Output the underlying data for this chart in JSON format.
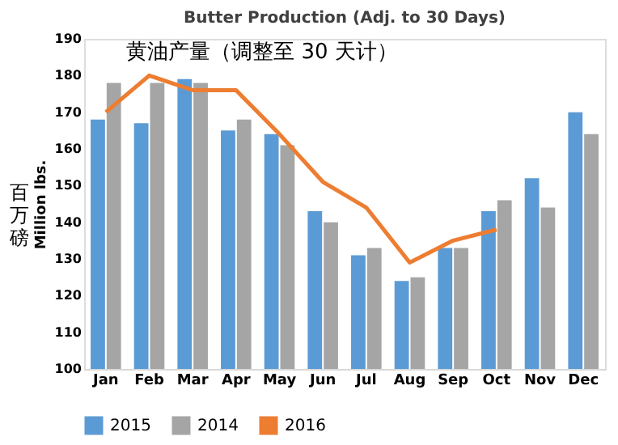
{
  "chart_data": {
    "type": "bar",
    "title": "Butter Production (Adj. to 30 Days)",
    "ylabel": "Million lbs.",
    "annotations": [
      "黄油产量（调整至 30 天计）",
      "百万磅"
    ],
    "categories": [
      "Jan",
      "Feb",
      "Mar",
      "Apr",
      "May",
      "Jun",
      "Jul",
      "Aug",
      "Sep",
      "Oct",
      "Nov",
      "Dec"
    ],
    "series": [
      {
        "name": "2015",
        "color": "#5b9bd5",
        "values": [
          168,
          167,
          179,
          165,
          164,
          143,
          131,
          124,
          133,
          143,
          152,
          170
        ]
      },
      {
        "name": "2014",
        "color": "#a5a5a5",
        "values": [
          178,
          178,
          178,
          168,
          161,
          140,
          133,
          125,
          133,
          146,
          144,
          164
        ]
      },
      {
        "name": "2016",
        "color": "#ed7d31",
        "type": "line",
        "values": [
          170,
          180,
          176,
          176,
          164,
          151,
          144,
          129,
          135,
          138,
          null,
          null
        ]
      }
    ],
    "ylim": [
      100,
      190
    ],
    "yticks": [
      100,
      110,
      120,
      130,
      140,
      150,
      160,
      170,
      180,
      190
    ],
    "grid": false,
    "legend": "bottom",
    "marker": "none",
    "line_style": "solid"
  }
}
